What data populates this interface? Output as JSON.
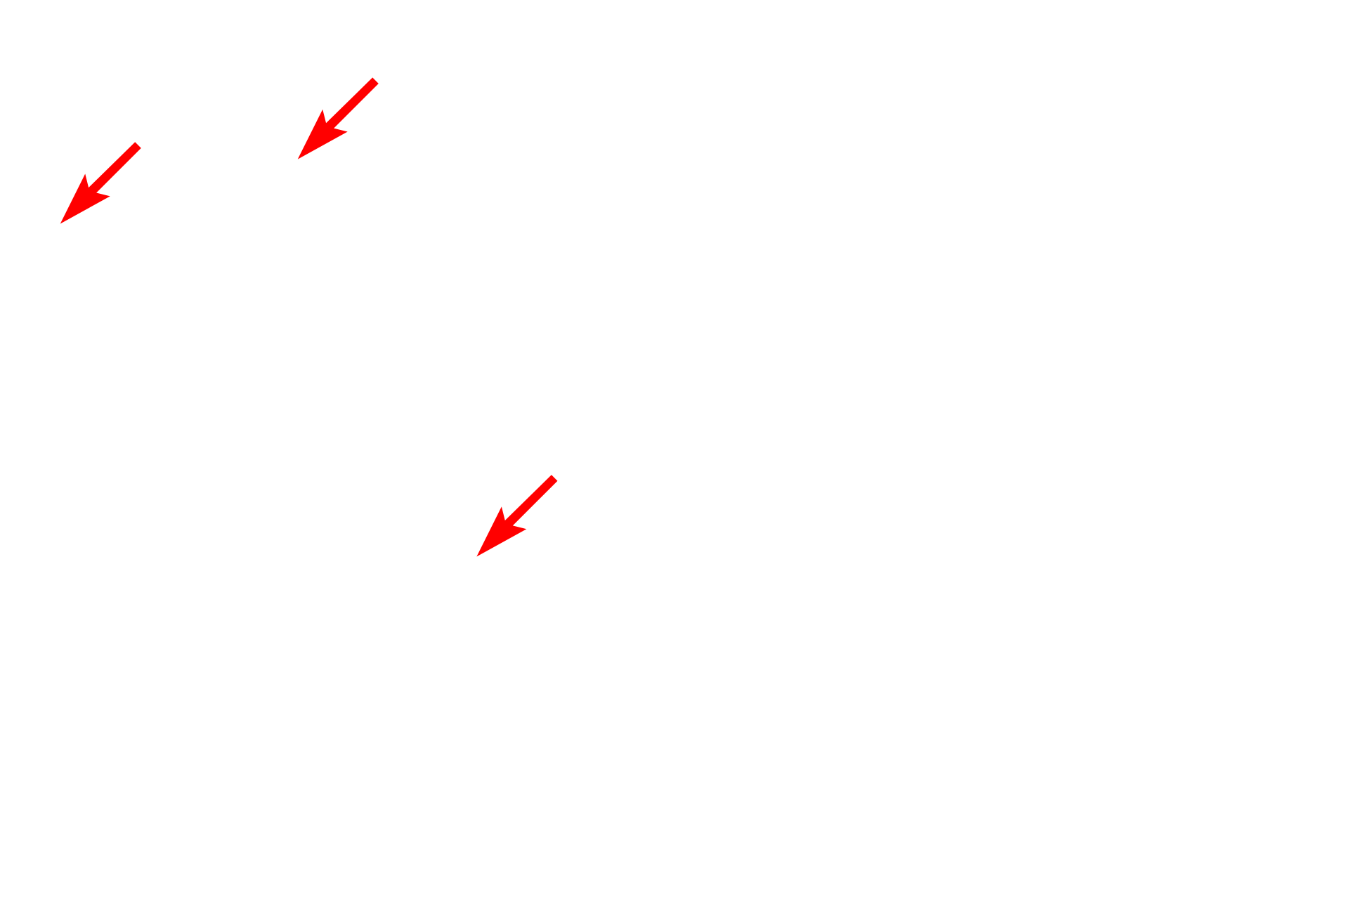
{
  "background_color": "#ffffff",
  "arrow_color": "#ff0000",
  "arrows": [
    {
      "icon": "arrow-down-left-icon"
    },
    {
      "icon": "arrow-down-left-icon"
    },
    {
      "icon": "arrow-down-left-icon"
    }
  ]
}
